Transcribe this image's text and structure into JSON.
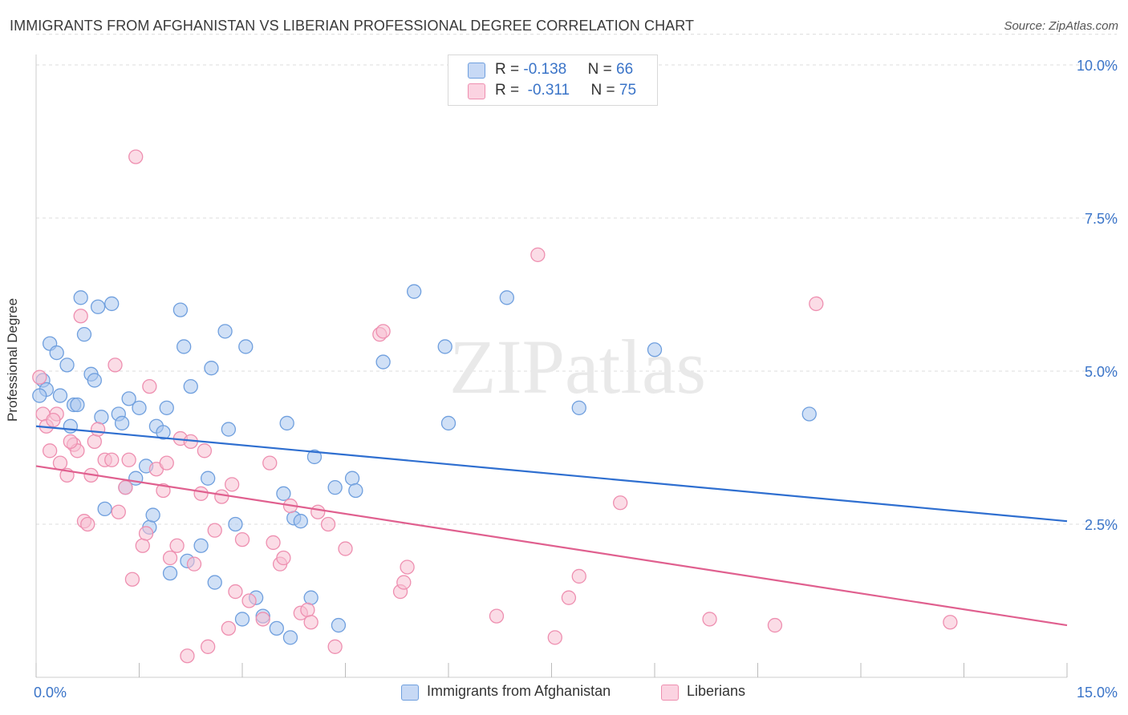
{
  "title": "IMMIGRANTS FROM AFGHANISTAN VS LIBERIAN PROFESSIONAL DEGREE CORRELATION CHART",
  "source": "Source: ZipAtlas.com",
  "watermark": "ZIPatlas",
  "colors": {
    "blue_fill": "#a9c6ee",
    "blue_stroke": "#6f9fde",
    "blue_line": "#2f6fd0",
    "pink_fill": "#f7bfd2",
    "pink_stroke": "#ee8fb0",
    "pink_line": "#e0608f",
    "axis_label": "#3a74c8",
    "grid": "#dcdcdc"
  },
  "legend_top": {
    "rows": [
      {
        "r_label": "R = ",
        "r_value": "-0.138",
        "n_label": "N = ",
        "n_value": "66"
      },
      {
        "r_label": "R = ",
        "r_value": "-0.311",
        "n_label": "N = ",
        "n_value": "75"
      }
    ]
  },
  "legend_bottom": {
    "items": [
      "Immigrants from Afghanistan",
      "Liberians"
    ]
  },
  "chart_data": {
    "type": "scatter",
    "title": "IMMIGRANTS FROM AFGHANISTAN VS LIBERIAN PROFESSIONAL DEGREE CORRELATION CHART",
    "xlabel": "",
    "ylabel": "Professional Degree",
    "xlim": [
      0,
      15
    ],
    "ylim": [
      0,
      10.5
    ],
    "x_tick_labels": [
      "0.0%",
      "15.0%"
    ],
    "y_ticks": [
      2.5,
      5.0,
      7.5,
      10.0
    ],
    "y_tick_labels": [
      "2.5%",
      "5.0%",
      "7.5%",
      "10.0%"
    ],
    "grid": true,
    "legend": "top-center",
    "series": [
      {
        "name": "Immigrants from Afghanistan",
        "color": "#a9c6ee",
        "trend": {
          "x": [
            0,
            15
          ],
          "y": [
            4.1,
            2.55
          ]
        },
        "points": [
          [
            0.1,
            4.85
          ],
          [
            0.15,
            4.7
          ],
          [
            0.2,
            5.45
          ],
          [
            0.3,
            5.3
          ],
          [
            0.35,
            4.6
          ],
          [
            0.45,
            5.1
          ],
          [
            0.5,
            4.1
          ],
          [
            0.55,
            4.45
          ],
          [
            0.6,
            4.45
          ],
          [
            0.65,
            6.2
          ],
          [
            0.7,
            5.6
          ],
          [
            0.8,
            4.95
          ],
          [
            0.85,
            4.85
          ],
          [
            0.9,
            6.05
          ],
          [
            0.95,
            4.25
          ],
          [
            1.0,
            2.75
          ],
          [
            1.1,
            6.1
          ],
          [
            1.2,
            4.3
          ],
          [
            1.25,
            4.15
          ],
          [
            1.3,
            3.1
          ],
          [
            1.35,
            4.55
          ],
          [
            1.45,
            3.25
          ],
          [
            1.5,
            4.4
          ],
          [
            1.6,
            3.45
          ],
          [
            1.65,
            2.45
          ],
          [
            1.7,
            2.65
          ],
          [
            1.75,
            4.1
          ],
          [
            1.85,
            4.0
          ],
          [
            1.9,
            4.4
          ],
          [
            1.95,
            1.7
          ],
          [
            2.1,
            6.0
          ],
          [
            2.15,
            5.4
          ],
          [
            2.2,
            1.9
          ],
          [
            2.25,
            4.75
          ],
          [
            2.4,
            2.15
          ],
          [
            2.5,
            3.25
          ],
          [
            2.55,
            5.05
          ],
          [
            2.6,
            1.55
          ],
          [
            2.75,
            5.65
          ],
          [
            2.8,
            4.05
          ],
          [
            2.9,
            2.5
          ],
          [
            3.0,
            0.95
          ],
          [
            3.05,
            5.4
          ],
          [
            3.2,
            1.3
          ],
          [
            3.3,
            1.0
          ],
          [
            3.5,
            0.8
          ],
          [
            3.6,
            3.0
          ],
          [
            3.65,
            4.15
          ],
          [
            3.7,
            0.65
          ],
          [
            3.75,
            2.6
          ],
          [
            3.85,
            2.55
          ],
          [
            4.0,
            1.3
          ],
          [
            4.05,
            3.6
          ],
          [
            4.35,
            3.1
          ],
          [
            4.4,
            0.85
          ],
          [
            4.6,
            3.25
          ],
          [
            4.65,
            3.05
          ],
          [
            5.05,
            5.15
          ],
          [
            5.5,
            6.3
          ],
          [
            5.95,
            5.4
          ],
          [
            6.0,
            4.15
          ],
          [
            6.85,
            6.2
          ],
          [
            7.9,
            4.4
          ],
          [
            9.0,
            5.35
          ],
          [
            11.25,
            4.3
          ],
          [
            0.05,
            4.6
          ]
        ]
      },
      {
        "name": "Liberians",
        "color": "#f7bfd2",
        "trend": {
          "x": [
            0,
            15
          ],
          "y": [
            3.45,
            0.85
          ]
        },
        "points": [
          [
            0.05,
            4.9
          ],
          [
            0.1,
            4.3
          ],
          [
            0.15,
            4.1
          ],
          [
            0.2,
            3.7
          ],
          [
            0.3,
            4.3
          ],
          [
            0.35,
            3.5
          ],
          [
            0.45,
            3.3
          ],
          [
            0.55,
            3.8
          ],
          [
            0.6,
            3.7
          ],
          [
            0.65,
            5.9
          ],
          [
            0.7,
            2.55
          ],
          [
            0.75,
            2.5
          ],
          [
            0.8,
            3.3
          ],
          [
            0.85,
            3.85
          ],
          [
            0.9,
            4.05
          ],
          [
            1.0,
            3.55
          ],
          [
            1.1,
            3.55
          ],
          [
            1.15,
            5.1
          ],
          [
            1.2,
            2.7
          ],
          [
            1.3,
            3.1
          ],
          [
            1.35,
            3.55
          ],
          [
            1.4,
            1.6
          ],
          [
            1.45,
            8.5
          ],
          [
            1.55,
            2.15
          ],
          [
            1.6,
            2.35
          ],
          [
            1.65,
            4.75
          ],
          [
            1.75,
            3.4
          ],
          [
            1.85,
            3.05
          ],
          [
            1.9,
            3.5
          ],
          [
            1.95,
            1.95
          ],
          [
            2.05,
            2.15
          ],
          [
            2.1,
            3.9
          ],
          [
            2.2,
            0.35
          ],
          [
            2.25,
            3.85
          ],
          [
            2.3,
            1.85
          ],
          [
            2.4,
            3.0
          ],
          [
            2.45,
            3.7
          ],
          [
            2.5,
            0.5
          ],
          [
            2.6,
            2.4
          ],
          [
            2.7,
            2.95
          ],
          [
            2.8,
            0.8
          ],
          [
            2.85,
            3.15
          ],
          [
            2.9,
            1.4
          ],
          [
            3.0,
            2.25
          ],
          [
            3.1,
            1.25
          ],
          [
            3.3,
            0.95
          ],
          [
            3.4,
            3.5
          ],
          [
            3.45,
            2.2
          ],
          [
            3.55,
            1.85
          ],
          [
            3.6,
            1.95
          ],
          [
            3.7,
            2.8
          ],
          [
            3.85,
            1.05
          ],
          [
            3.95,
            1.1
          ],
          [
            4.0,
            0.9
          ],
          [
            4.1,
            2.7
          ],
          [
            4.25,
            2.5
          ],
          [
            4.35,
            0.5
          ],
          [
            4.5,
            2.1
          ],
          [
            5.0,
            5.6
          ],
          [
            5.05,
            5.65
          ],
          [
            5.3,
            1.4
          ],
          [
            5.35,
            1.55
          ],
          [
            5.4,
            1.8
          ],
          [
            6.7,
            1.0
          ],
          [
            7.3,
            6.9
          ],
          [
            7.55,
            0.65
          ],
          [
            7.75,
            1.3
          ],
          [
            7.9,
            1.65
          ],
          [
            8.5,
            2.85
          ],
          [
            9.8,
            0.95
          ],
          [
            10.75,
            0.85
          ],
          [
            11.35,
            6.1
          ],
          [
            13.3,
            0.9
          ],
          [
            0.25,
            4.2
          ],
          [
            0.5,
            3.85
          ]
        ]
      }
    ]
  }
}
